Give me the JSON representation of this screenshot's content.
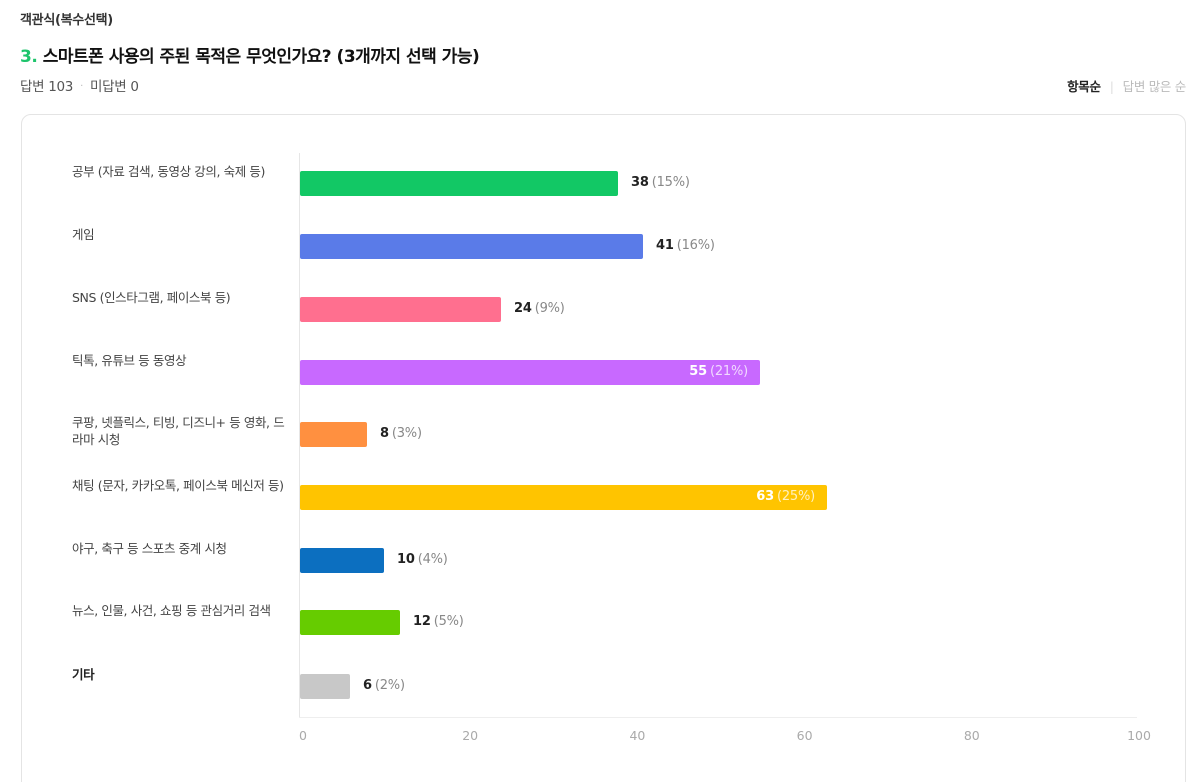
{
  "question": {
    "type_label": "객관식(복수선택)",
    "number": "3.",
    "title": "스마트폰 사용의 주된 목적은 무엇인가요? (3개까지 선택 가능)",
    "answered_label": "답변 103",
    "unanswered_label": "미답변 0",
    "separator": "·"
  },
  "sort": {
    "active_label": "항목순",
    "separator": "|",
    "inactive_label": "답변 많은 순"
  },
  "chart_data": {
    "type": "bar",
    "orientation": "horizontal",
    "title": "스마트폰 사용의 주된 목적은 무엇인가요? (3개까지 선택 가능)",
    "xlabel": "",
    "ylabel": "",
    "xlim": [
      0,
      100
    ],
    "x_ticks": [
      0,
      20,
      40,
      60,
      80,
      100
    ],
    "grid": false,
    "legend": null,
    "categories": [
      "공부 (자료 검색, 동영상 강의, 숙제 등)",
      "게임",
      "SNS (인스타그램, 페이스북 등)",
      "틱톡, 유튜브 등 동영상",
      "쿠팡, 넷플릭스, 티빙, 디즈니+ 등 영화, 드라마 시청",
      "채팅 (문자, 카카오톡, 페이스북 메신저 등)",
      "야구, 축구 등 스포츠 중계 시청",
      "뉴스, 인물, 사건, 쇼핑 등 관심거리 검색",
      "기타"
    ],
    "values": [
      38,
      41,
      24,
      55,
      8,
      63,
      10,
      12,
      6
    ],
    "percentages": [
      "15%",
      "16%",
      "9%",
      "21%",
      "3%",
      "25%",
      "4%",
      "5%",
      "2%"
    ],
    "colors": [
      "#12c865",
      "#5a7be8",
      "#ff6f8f",
      "#c869ff",
      "#ff9040",
      "#ffc400",
      "#0c6fc0",
      "#66cc00",
      "#c8c8c8"
    ]
  },
  "rows": [
    {
      "label": "공부 (자료 검색, 동영상 강의, 숙제 등)",
      "count": "38",
      "pct": "(15%)"
    },
    {
      "label": "게임",
      "count": "41",
      "pct": "(16%)"
    },
    {
      "label": "SNS (인스타그램, 페이스북 등)",
      "count": "24",
      "pct": "(9%)"
    },
    {
      "label": "틱톡, 유튜브 등 동영상",
      "count": "55",
      "pct": "(21%)"
    },
    {
      "label": "쿠팡, 넷플릭스, 티빙, 디즈니+ 등 영화, 드라마 시청",
      "count": "8",
      "pct": "(3%)"
    },
    {
      "label": "채팅 (문자, 카카오톡, 페이스북 메신저 등)",
      "count": "63",
      "pct": "(25%)"
    },
    {
      "label": "야구, 축구 등 스포츠 중계 시청",
      "count": "10",
      "pct": "(4%)"
    },
    {
      "label": "뉴스, 인물, 사건, 쇼핑 등 관심거리 검색",
      "count": "12",
      "pct": "(5%)"
    },
    {
      "label": "기타",
      "count": "6",
      "pct": "(2%)"
    }
  ],
  "ticks": [
    "0",
    "20",
    "40",
    "60",
    "80",
    "100"
  ]
}
